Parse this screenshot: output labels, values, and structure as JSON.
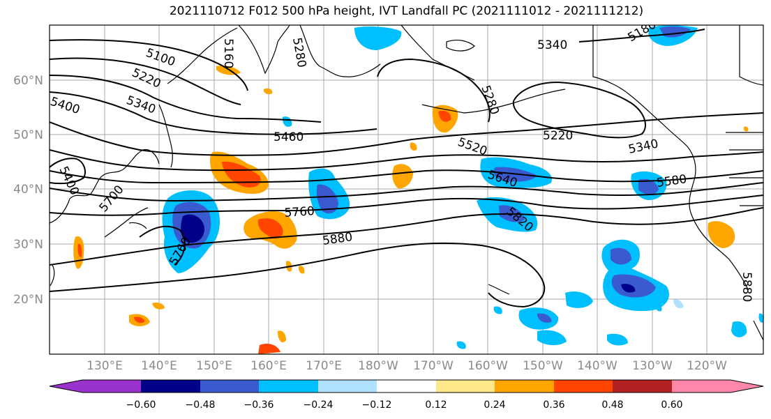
{
  "title": "2021110712 F012 500 hPa height, IVT Landfall PC (2021111012 - 2021111212)",
  "lat_labels": [
    "60°N",
    "50°N",
    "40°N",
    "30°N",
    "20°N"
  ],
  "lon_labels": [
    "130°E",
    "140°E",
    "150°E",
    "160°E",
    "170°E",
    "180°W",
    "170°W",
    "160°W",
    "150°W",
    "140°W",
    "130°W",
    "120°W"
  ],
  "contour_labels": [
    "5100",
    "5160",
    "5280",
    "5340",
    "5220",
    "5340",
    "5400",
    "5460",
    "5520",
    "5640",
    "5580",
    "5400",
    "5700",
    "5760",
    "5820",
    "5880",
    "5760",
    "5220",
    "5340",
    "5280",
    "5180",
    "5880"
  ],
  "colorbar": {
    "ticks": [
      "−0.60",
      "−0.48",
      "−0.36",
      "−0.24",
      "−0.12",
      "0.12",
      "0.24",
      "0.36",
      "0.48",
      "0.60"
    ],
    "colors": [
      "#9a32cd",
      "#00008b",
      "#3a5bd0",
      "#00bfff",
      "#b0e2ff",
      "#ffffff",
      "#ffe88a",
      "#ffa500",
      "#ff4500",
      "#b22222",
      "#ff88aa"
    ]
  }
}
